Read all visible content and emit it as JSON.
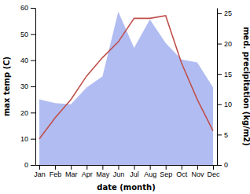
{
  "chart_data": {
    "type": "line",
    "x_label": "date (month)",
    "y_label": "max temp (C)",
    "y2_label": "med. precipitation (kg/m2)",
    "categories": [
      "Jan",
      "Feb",
      "Mar",
      "Apr",
      "May",
      "Jun",
      "Jul",
      "Aug",
      "Sep",
      "Oct",
      "Nov",
      "Dec"
    ],
    "series": [
      {
        "type": "area",
        "axis": "y2",
        "color": "#b1bdf2",
        "values": [
          10.8,
          10.2,
          10.0,
          12.8,
          14.6,
          25.3,
          19.3,
          24.0,
          20.1,
          17.4,
          16.9,
          12.8
        ]
      },
      {
        "type": "line",
        "color": "#c0504d",
        "values": [
          10,
          18,
          25,
          34,
          41,
          47,
          56,
          56,
          57,
          39,
          25,
          13
        ]
      }
    ],
    "ylim": [
      0,
      60
    ],
    "yticks": [
      0,
      10,
      20,
      30,
      40,
      50,
      60
    ],
    "y2lim": [
      0,
      25.9
    ],
    "y2ticks": [
      0,
      5,
      10,
      15,
      20,
      25
    ]
  }
}
